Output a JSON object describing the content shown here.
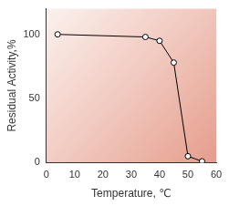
{
  "chart_data": {
    "type": "line",
    "x_label": "Temperature, ℃",
    "y_label": "Residual Activity,%",
    "x": [
      4,
      35,
      40,
      45,
      50,
      55
    ],
    "values": [
      100,
      98,
      95,
      78,
      5,
      1
    ],
    "color": "#000000",
    "marker": "circle",
    "xlim": [
      0,
      60
    ],
    "xticks": [
      0,
      10,
      20,
      30,
      40,
      50,
      60
    ],
    "ylim": [
      0,
      120
    ],
    "yticks": [
      0,
      50,
      100
    ],
    "grid": false
  }
}
